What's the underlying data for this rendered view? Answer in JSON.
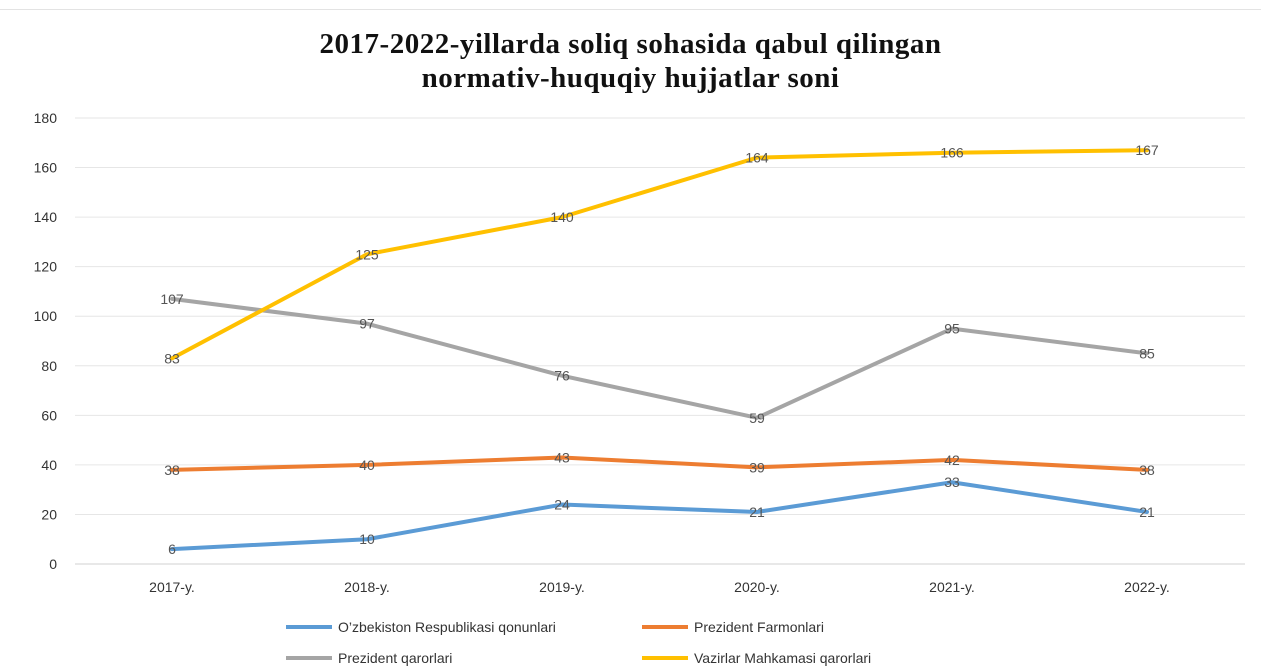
{
  "chart_data": {
    "type": "line",
    "title_line1": "2017-2022-yillarda soliq sohasida qabul qilingan",
    "title_line2": "normativ-huquqiy hujjatlar soni",
    "categories": [
      "2017-y.",
      "2018-y.",
      "2019-y.",
      "2020-y.",
      "2021-y.",
      "2022-y."
    ],
    "ylim": [
      0,
      180
    ],
    "yticks": [
      0,
      20,
      40,
      60,
      80,
      100,
      120,
      140,
      160,
      180
    ],
    "grid": true,
    "legend_position": "bottom",
    "series": [
      {
        "name": "O’zbekiston Respublikasi qonunlari",
        "color": "#5b9bd5",
        "values": [
          6,
          10,
          24,
          21,
          33,
          21
        ]
      },
      {
        "name": "Prezident Farmonlari",
        "color": "#ed7d31",
        "values": [
          38,
          40,
          43,
          39,
          42,
          38
        ]
      },
      {
        "name": "Prezident qarorlari",
        "color": "#a5a5a5",
        "values": [
          107,
          97,
          76,
          59,
          95,
          85
        ]
      },
      {
        "name": "Vazirlar Mahkamasi qarorlari",
        "color": "#ffc000",
        "values": [
          83,
          125,
          140,
          164,
          166,
          167
        ]
      }
    ]
  }
}
